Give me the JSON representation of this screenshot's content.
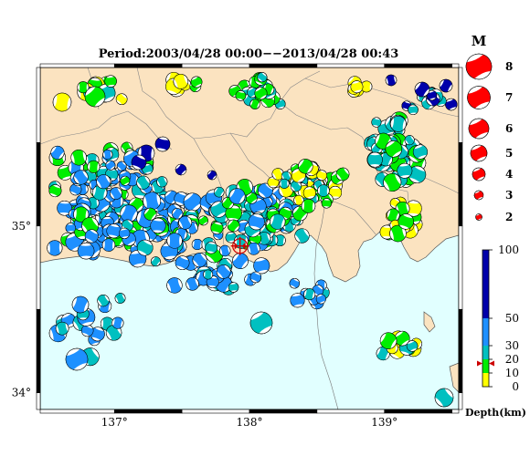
{
  "map": {
    "title": "Period:2003/04/28 00:00−−2013/04/28 00:43",
    "lon_labels": [
      "137°",
      "138°",
      "139°"
    ],
    "lat_labels": [
      "35°",
      "34°"
    ],
    "lon_range": [
      136.45,
      139.55
    ],
    "lat_range": [
      33.9,
      35.95
    ],
    "epicenter": {
      "lon": 137.93,
      "lat": 34.88
    }
  },
  "legend": {
    "magnitude_title": "M",
    "magnitudes": [
      "8",
      "7",
      "6",
      "5",
      "4",
      "3",
      "2"
    ],
    "depth_ticks": [
      "100",
      "50",
      "30",
      "20",
      "10",
      "0"
    ],
    "depth_label": "Depth(km)",
    "depth_marker": 17
  },
  "colors": {
    "land": "#fbe3c0",
    "sea": "#e1ffff",
    "mechanism": "#ff0000",
    "depth_0_10": "#ffff00",
    "depth_10_20": "#00ee00",
    "depth_20_30": "#00c0c0",
    "depth_30_50": "#1e90ff",
    "depth_50_100": "#0000aa"
  }
}
